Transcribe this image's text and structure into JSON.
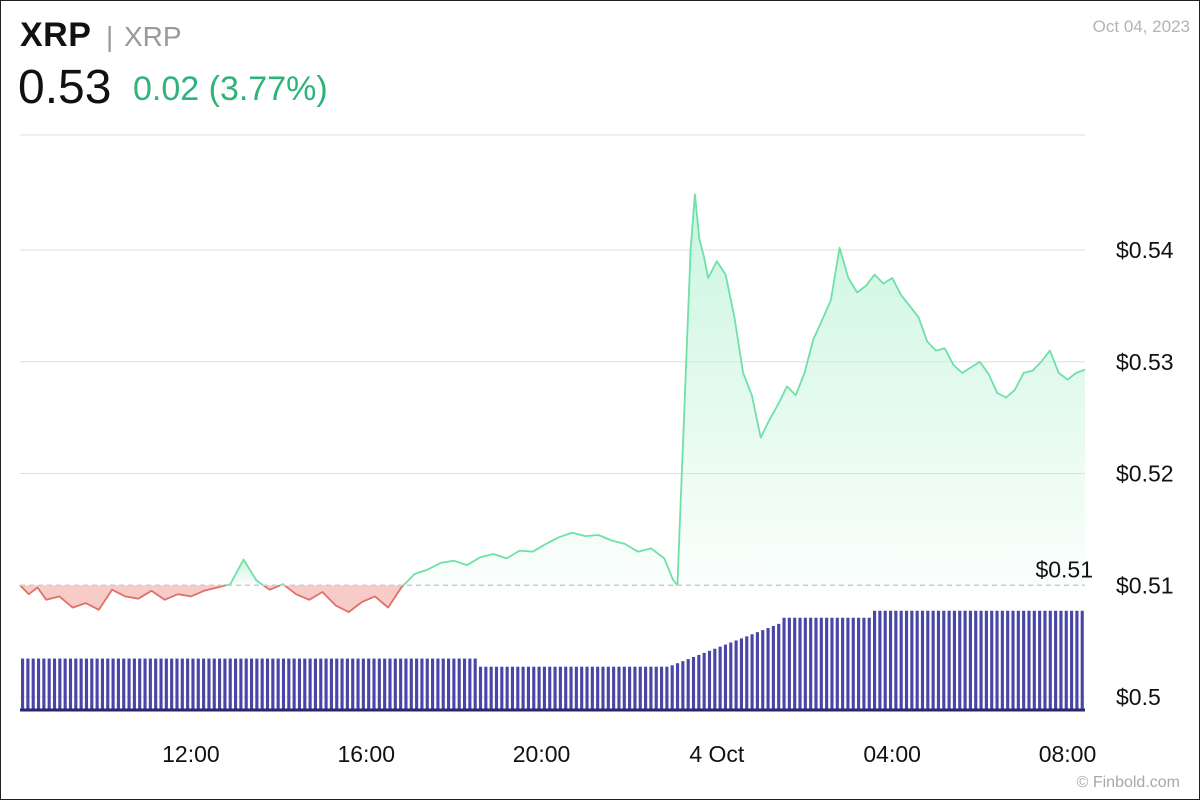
{
  "header": {
    "symbol": "XRP",
    "separator": "|",
    "name": "XRP",
    "date": "Oct 04, 2023",
    "price": "0.53",
    "change": "0.02 (3.77%)"
  },
  "footer": {
    "watermark": "© Finbold.com"
  },
  "colors": {
    "up_line": "#6fe0a7",
    "up_fill_top": "#c8f5de",
    "down_line": "#e0716a",
    "down_fill": "#f7cbc8",
    "volume": "#4a46a8",
    "grid": "#dddddd",
    "baseline": "#cccccc",
    "change_text": "#2fb37a"
  },
  "chart_data": {
    "type": "line",
    "title": "",
    "xlabel": "",
    "ylabel": "",
    "ylim": [
      0.5,
      0.545
    ],
    "baseline": 0.51,
    "baseline_label": "$0.51",
    "y_ticks": [
      {
        "value": 0.54,
        "label": "$0.54"
      },
      {
        "value": 0.53,
        "label": "$0.53"
      },
      {
        "value": 0.52,
        "label": "$0.52"
      },
      {
        "value": 0.51,
        "label": "$0.51"
      },
      {
        "value": 0.5,
        "label": "$0.5"
      }
    ],
    "x_ticks": [
      {
        "hour": 12,
        "label": "12:00"
      },
      {
        "hour": 16,
        "label": "16:00"
      },
      {
        "hour": 20,
        "label": "20:00"
      },
      {
        "hour": 24,
        "label": "4 Oct"
      },
      {
        "hour": 28,
        "label": "04:00"
      },
      {
        "hour": 32,
        "label": "08:00"
      }
    ],
    "x_range": [
      8.1,
      32.4
    ],
    "series": [
      {
        "x": [
          8.1,
          8.3,
          8.5,
          8.7,
          9.0,
          9.3,
          9.6,
          9.9,
          10.2,
          10.5,
          10.8,
          11.1,
          11.4,
          11.7,
          12.0,
          12.3,
          12.6,
          12.9,
          13.2,
          13.5,
          13.8,
          14.1,
          14.4,
          14.7,
          15.0,
          15.3,
          15.6,
          15.9,
          16.2,
          16.5,
          16.8,
          17.1,
          17.4,
          17.7,
          18.0,
          18.3,
          18.6,
          18.9,
          19.2,
          19.5,
          19.8,
          20.1,
          20.4,
          20.7,
          21.0,
          21.3,
          21.6,
          21.9,
          22.2,
          22.5,
          22.8,
          23.0,
          23.1,
          23.2,
          23.3,
          23.4,
          23.5,
          23.6,
          23.7,
          23.8,
          24.0,
          24.2,
          24.4,
          24.6,
          24.8,
          25.0,
          25.2,
          25.4,
          25.6,
          25.8,
          26.0,
          26.2,
          26.4,
          26.6,
          26.8,
          27.0,
          27.2,
          27.4,
          27.6,
          27.8,
          28.0,
          28.2,
          28.4,
          28.6,
          28.8,
          29.0,
          29.2,
          29.4,
          29.6,
          29.8,
          30.0,
          30.2,
          30.4,
          30.6,
          30.8,
          31.0,
          31.2,
          31.4,
          31.6,
          31.8,
          32.0,
          32.2,
          32.4
        ],
        "y": [
          0.51,
          0.5092,
          0.5098,
          0.5087,
          0.509,
          0.508,
          0.5084,
          0.5078,
          0.5096,
          0.509,
          0.5088,
          0.5095,
          0.5087,
          0.5092,
          0.509,
          0.5095,
          0.5098,
          0.5101,
          0.5123,
          0.5104,
          0.5096,
          0.5101,
          0.5092,
          0.5087,
          0.5094,
          0.5082,
          0.5076,
          0.5085,
          0.509,
          0.508,
          0.5098,
          0.511,
          0.5114,
          0.512,
          0.5122,
          0.5118,
          0.5125,
          0.5128,
          0.5124,
          0.5131,
          0.513,
          0.5137,
          0.5143,
          0.5147,
          0.5144,
          0.5145,
          0.514,
          0.5137,
          0.513,
          0.5133,
          0.5124,
          0.5105,
          0.51,
          0.52,
          0.53,
          0.54,
          0.545,
          0.541,
          0.5395,
          0.5375,
          0.539,
          0.5378,
          0.534,
          0.529,
          0.527,
          0.5232,
          0.5248,
          0.5262,
          0.5278,
          0.527,
          0.529,
          0.532,
          0.5337,
          0.5355,
          0.5402,
          0.5375,
          0.5362,
          0.5368,
          0.5378,
          0.537,
          0.5375,
          0.536,
          0.535,
          0.534,
          0.5318,
          0.531,
          0.5312,
          0.5297,
          0.529,
          0.5295,
          0.53,
          0.5289,
          0.5272,
          0.5268,
          0.5275,
          0.529,
          0.5292,
          0.53,
          0.531,
          0.529,
          0.5284,
          0.529,
          0.5293
        ]
      }
    ],
    "volume": {
      "x_start": 8.1,
      "x_end": 32.4,
      "count": 200,
      "segments": [
        {
          "from": 8.1,
          "to": 18.5,
          "level": 0.45
        },
        {
          "from": 18.5,
          "to": 22.9,
          "level": 0.38
        },
        {
          "from": 22.9,
          "to": 25.5,
          "level": 0.64
        },
        {
          "from": 25.5,
          "to": 27.5,
          "level": 0.8
        },
        {
          "from": 27.5,
          "to": 32.4,
          "level": 0.86
        }
      ]
    }
  }
}
